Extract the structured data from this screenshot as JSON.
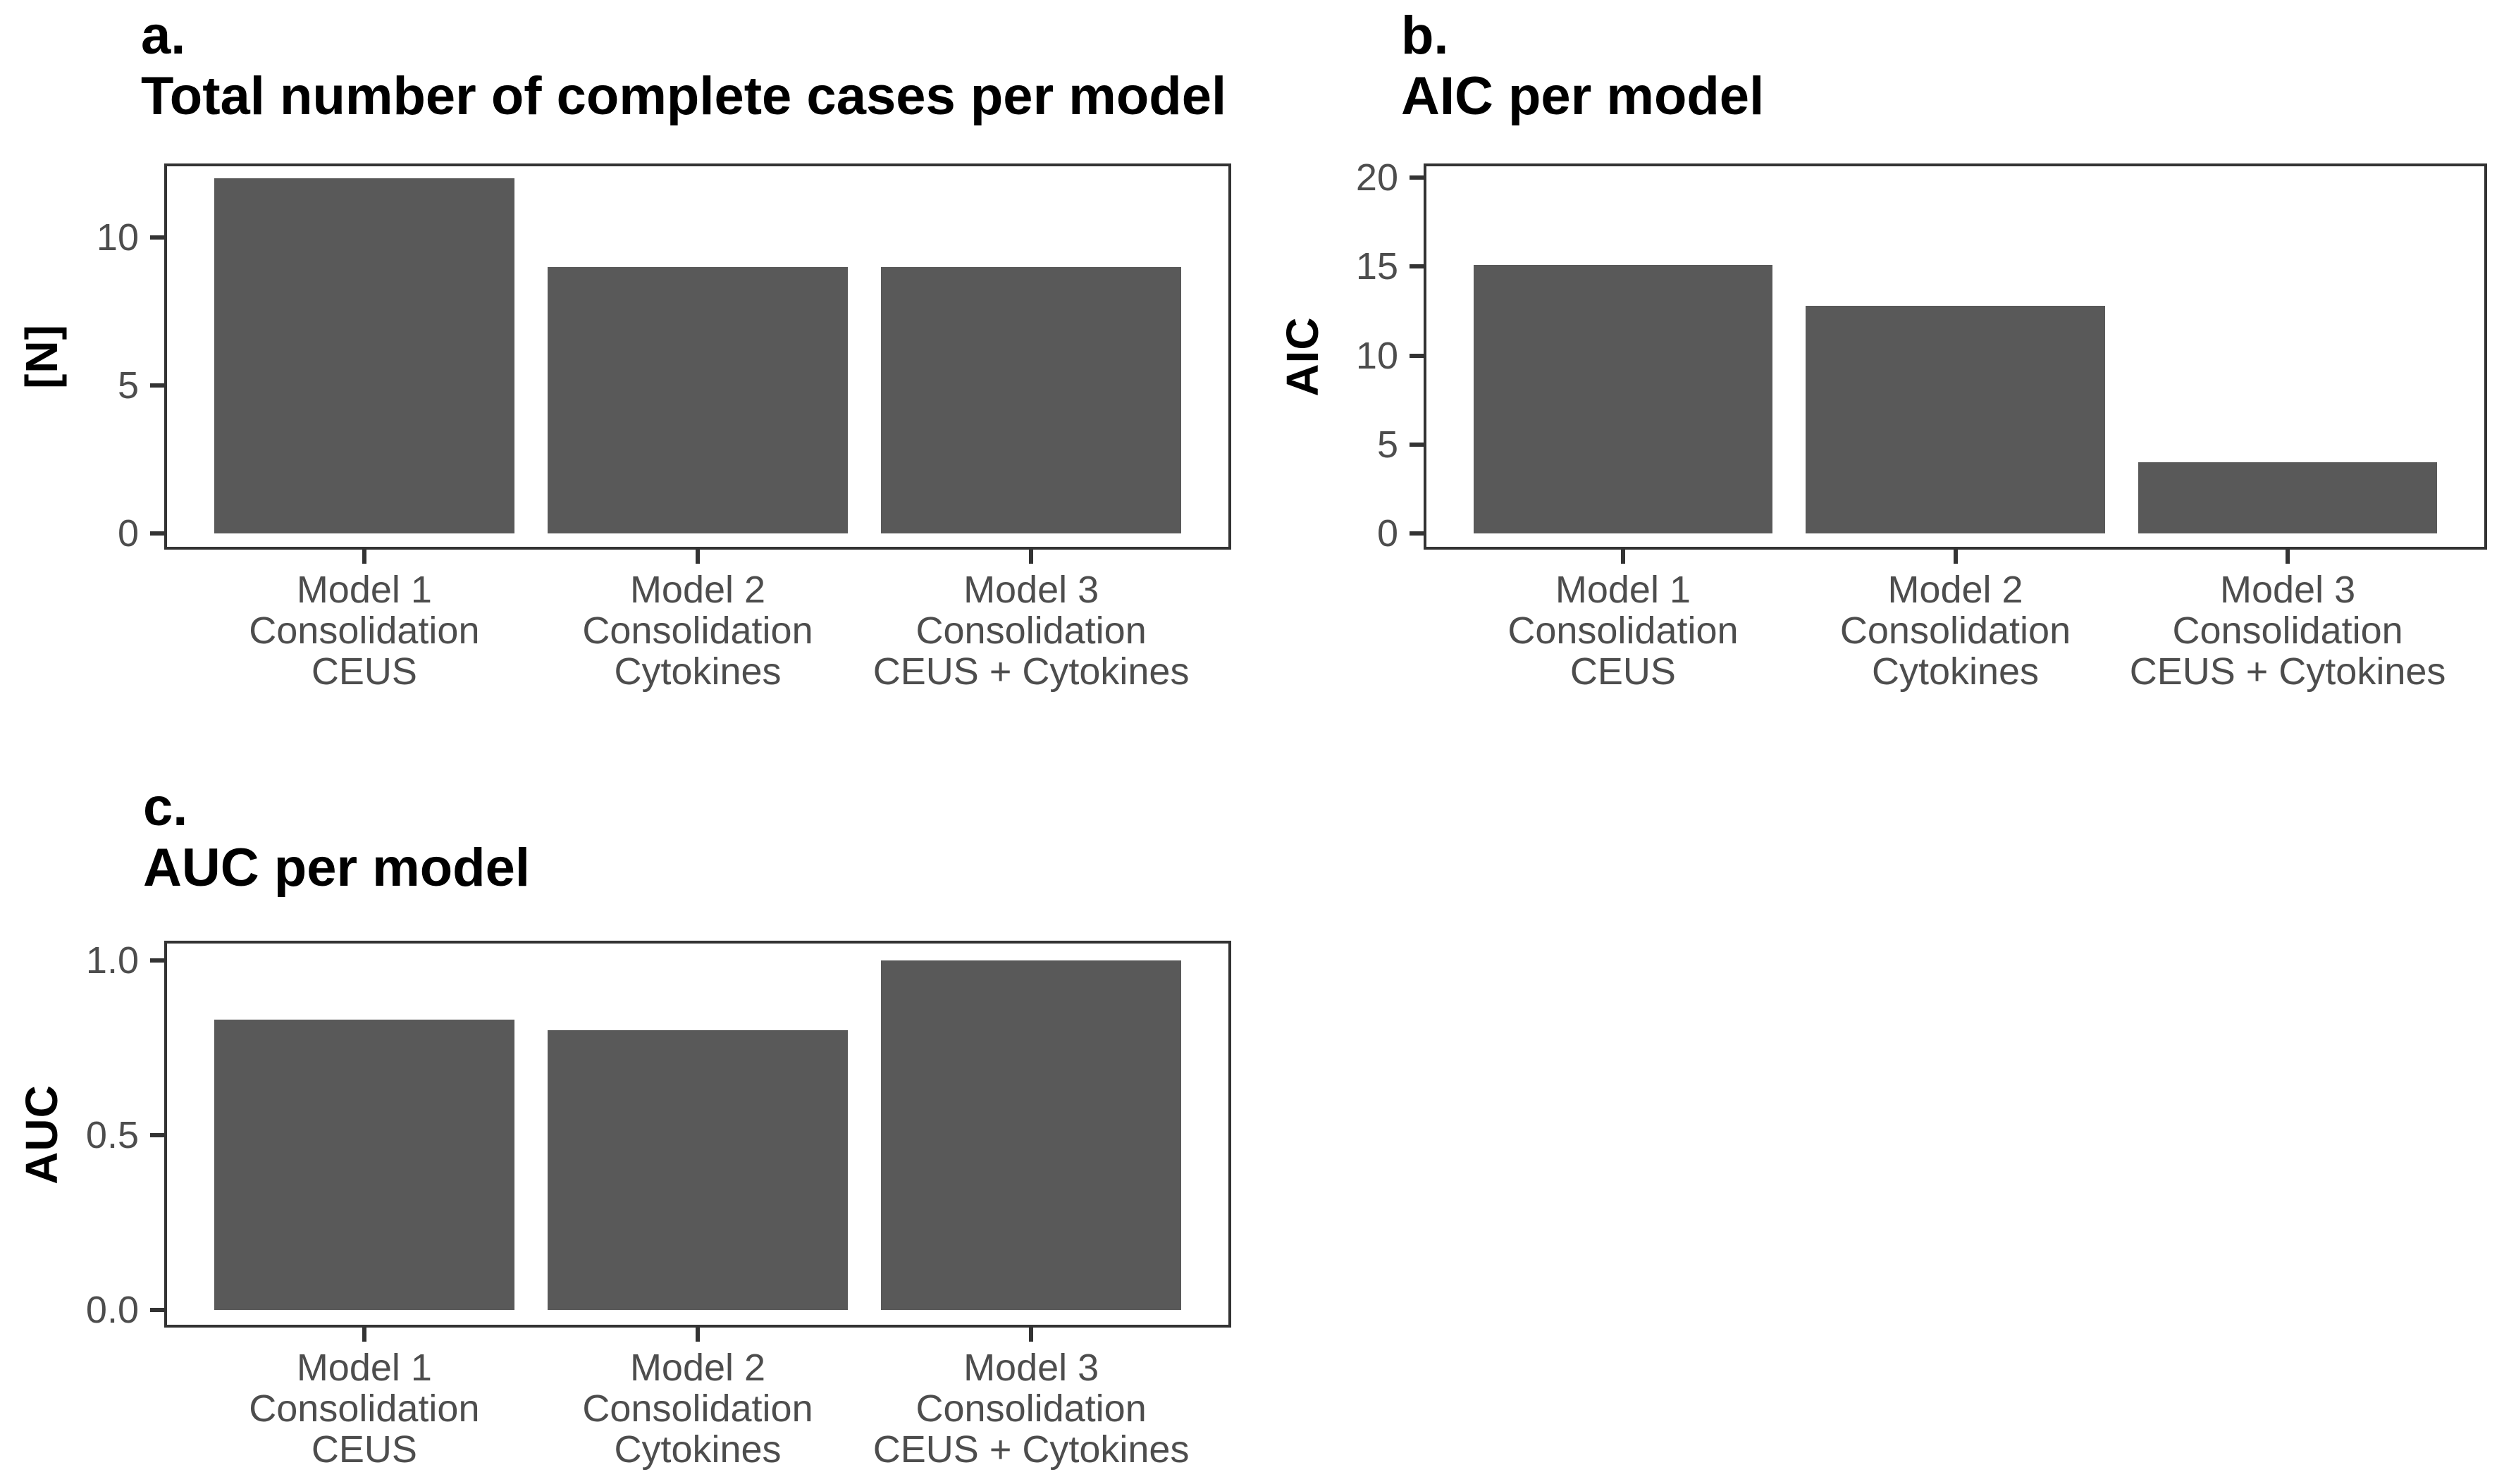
{
  "figure": {
    "background": "#ffffff",
    "description_of_layout": "three bar-chart panels: a top-left, b top-right, c bottom-left"
  },
  "colors": {
    "bar_fill": "#595959",
    "axis_line": "#333333",
    "tick_label_text": "#4d4d4d",
    "title_text": "#000000"
  },
  "chart_data": [
    {
      "id": "a",
      "type": "bar",
      "tag": "a.",
      "title": "Total number of complete cases per model",
      "title_visible_truncated": "Total number of complete cases per m",
      "ylabel": "[N]",
      "xlabel": "",
      "grid": false,
      "legend": false,
      "categories": [
        "Model 1\nConsolidation\nCEUS",
        "Model 2\nConsolidation\nCytokines",
        "Model 3\nConsolidation\nCEUS + Cytokines"
      ],
      "values": [
        12,
        9,
        9
      ],
      "yticks": [
        {
          "v": 0,
          "label": "0"
        },
        {
          "v": 5,
          "label": "5"
        },
        {
          "v": 10,
          "label": "10"
        }
      ],
      "ylim": [
        0,
        12.5
      ]
    },
    {
      "id": "b",
      "type": "bar",
      "tag": "b.",
      "title": "AIC per model",
      "ylabel": "AIC",
      "xlabel": "",
      "grid": false,
      "legend": false,
      "categories": [
        "Model 1\nConsolidation\nCEUS",
        "Model 2\nConsolidation\nCytokines",
        "Model 3\nConsolidation\nCEUS + Cytokines"
      ],
      "values": [
        15.1,
        12.8,
        4.0
      ],
      "yticks": [
        {
          "v": 0,
          "label": "0"
        },
        {
          "v": 5,
          "label": "5"
        },
        {
          "v": 10,
          "label": "10"
        },
        {
          "v": 15,
          "label": "15"
        },
        {
          "v": 20,
          "label": "20"
        }
      ],
      "ylim": [
        0,
        20.8
      ]
    },
    {
      "id": "c",
      "type": "bar",
      "tag": "c.",
      "title": "AUC per model",
      "ylabel": "AUC",
      "xlabel": "",
      "grid": false,
      "legend": false,
      "categories": [
        "Model 1\nConsolidation\nCEUS",
        "Model 2\nConsolidation\nCytokines",
        "Model 3\nConsolidation\nCEUS + Cytokines"
      ],
      "values": [
        0.83,
        0.8,
        1.0
      ],
      "yticks": [
        {
          "v": 0,
          "label": "0.0"
        },
        {
          "v": 0.5,
          "label": "0.5"
        },
        {
          "v": 1.0,
          "label": "1.0"
        }
      ],
      "ylim": [
        0,
        1.056
      ]
    }
  ]
}
